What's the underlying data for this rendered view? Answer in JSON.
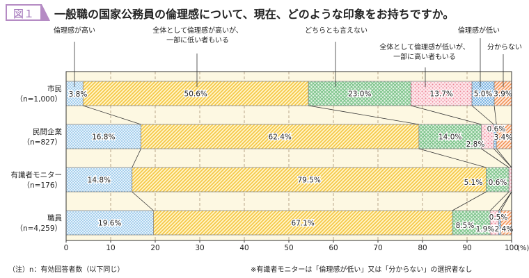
{
  "figure_label": "図１",
  "chart_data": {
    "type": "bar",
    "orientation": "horizontal-stacked-100",
    "title": "一般職の国家公務員の倫理感について、現在、どのような印象をお持ちですか。",
    "categories": [
      {
        "name": "市民",
        "n": "（n=1,000）"
      },
      {
        "name": "民間企業",
        "n": "（n=827）"
      },
      {
        "name": "有識者モニター",
        "n": "（n=176）"
      },
      {
        "name": "職員",
        "n": "（n=4,259）"
      }
    ],
    "series": [
      {
        "name": "倫理感が高い",
        "values": [
          3.8,
          16.8,
          14.8,
          19.6
        ],
        "color": "#5aa6dc"
      },
      {
        "name": "全体として倫理感が高いが、一部に低い者もいる",
        "values": [
          50.6,
          62.4,
          79.5,
          67.1
        ],
        "color": "#f5c640"
      },
      {
        "name": "どちらとも言えない",
        "values": [
          23.0,
          14.0,
          5.1,
          8.5
        ],
        "color": "#7cc38a"
      },
      {
        "name": "全体として倫理感が低いが、一部に高い者もいる",
        "values": [
          13.7,
          2.8,
          0.6,
          1.9
        ],
        "color": "#ec7f92"
      },
      {
        "name": "倫理感が低い",
        "values": [
          5.0,
          0.6,
          null,
          0.5
        ],
        "color": "#3f8fd0"
      },
      {
        "name": "分からない",
        "values": [
          3.9,
          3.4,
          null,
          2.4
        ],
        "color": "#f28a4a"
      }
    ],
    "legend_labels": {
      "s0": "倫理感が高い",
      "s1a": "全体として倫理感が高いが、",
      "s1b": "一部に低い者もいる",
      "s2": "どちらとも言えない",
      "s3a": "全体として倫理感が低いが、",
      "s3b": "一部に高い者もいる",
      "s4": "倫理感が低い",
      "s5": "分からない"
    },
    "x_ticks": [
      "0",
      "10",
      "20",
      "30",
      "40",
      "50",
      "60",
      "70",
      "80",
      "90",
      "100"
    ],
    "x_unit": "(%)",
    "xlim": [
      0,
      100
    ],
    "grid": "vertical dashed",
    "background": "#fdf8e2"
  },
  "footnotes": {
    "left": "（注）n：有効回答者数（以下同じ）",
    "right": "※有識者モニターは「倫理感が低い」又は「分からない」の選択者なし"
  }
}
